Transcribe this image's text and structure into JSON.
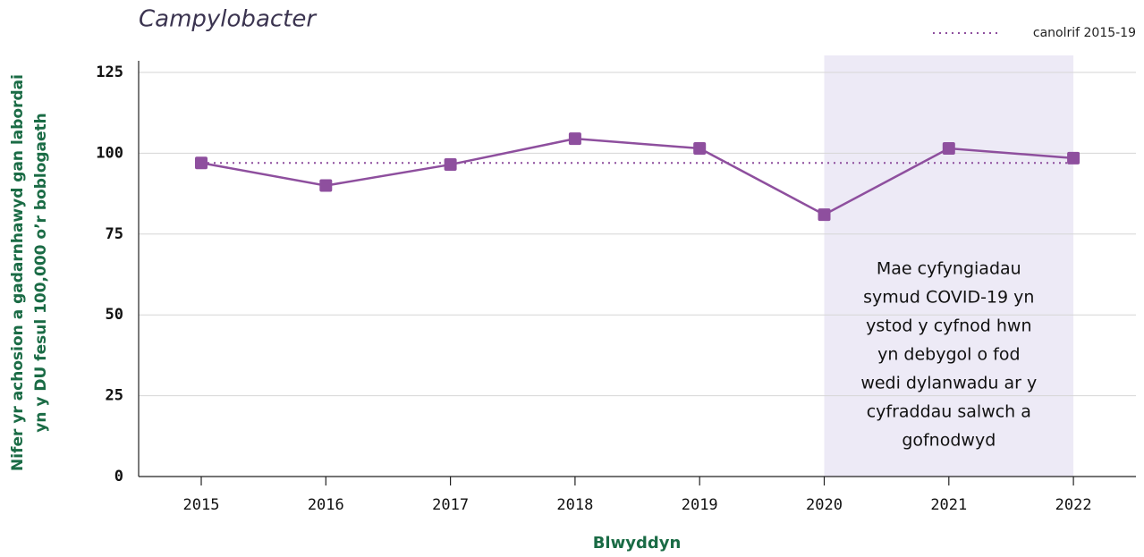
{
  "chart_data": {
    "type": "line",
    "title": "Campylobacter",
    "y_label": [
      "Nifer yr achosion a gadarnhawyd gan labordai",
      "yn y DU fesul 100,000 o’r boblogaeth"
    ],
    "x_label": "Blwyddyn",
    "categories": [
      "2015",
      "2016",
      "2017",
      "2018",
      "2019",
      "2020",
      "2021",
      "2022"
    ],
    "series": [
      {
        "name": "Campylobacter",
        "color": "#8e4f9e",
        "values": [
          97,
          90,
          96.5,
          104.5,
          101.5,
          81,
          101.5,
          98.5
        ]
      }
    ],
    "reference_line": {
      "name": "canolrif 2015-19",
      "value": 97,
      "color": "#8e4f9e",
      "style": "dotted"
    },
    "highlight": {
      "from": "2020",
      "to": "2022",
      "color": "#edeaf6"
    },
    "annotation": [
      "Mae cyfyngiadau",
      "symud COVID-19 yn",
      "ystod y cyfnod hwn",
      "yn debygol o fod",
      "wedi dylanwadu ar y",
      "cyfraddau salwch a",
      "gofnodwyd"
    ],
    "ylim": [
      0,
      125
    ],
    "yticks": [
      0,
      25,
      50,
      75,
      100,
      125
    ],
    "grid": true,
    "legend": "top-right"
  }
}
